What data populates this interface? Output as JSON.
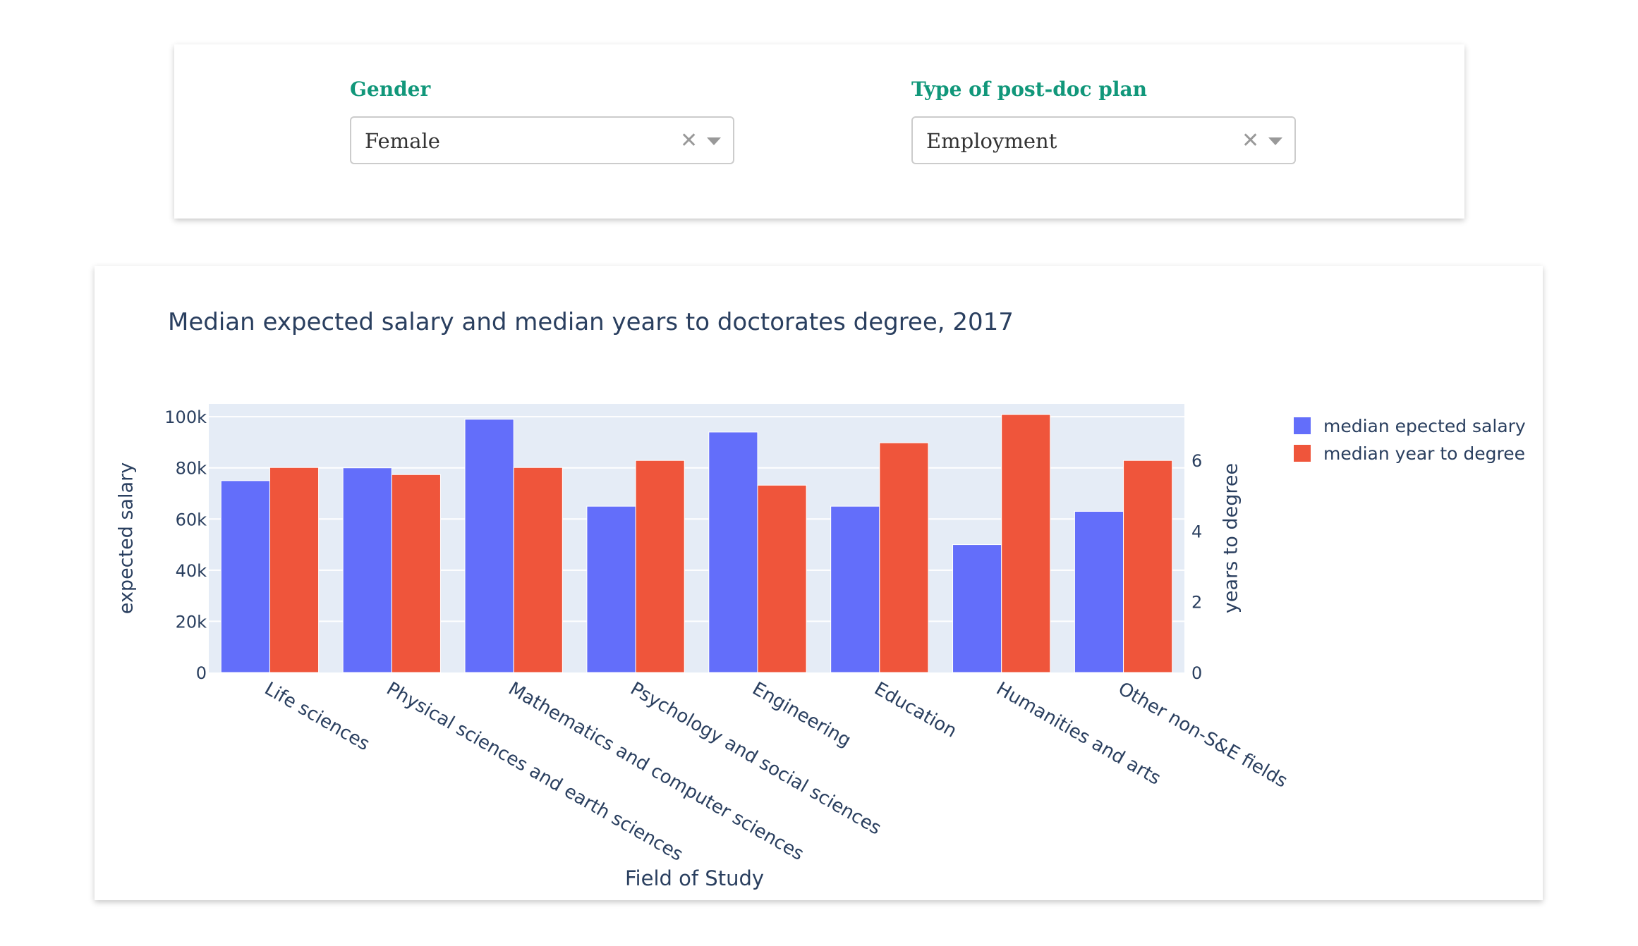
{
  "filters": {
    "gender": {
      "label": "Gender",
      "value": "Female",
      "clear_icon": "close-icon",
      "arrow_icon": "chevron-down-icon"
    },
    "plan": {
      "label": "Type of post-doc plan",
      "value": "Employment",
      "clear_icon": "close-icon",
      "arrow_icon": "chevron-down-icon"
    }
  },
  "colors": {
    "accent": "#11977a",
    "salary": "#636efa",
    "years": "#ef553b",
    "plot_bg": "#e5ecf6",
    "text": "#2a3f5f"
  },
  "chart_data": {
    "type": "bar",
    "title": "Median expected salary and median years to doctorates degree, 2017",
    "xlabel": "Field of Study",
    "ylabel": "expected salary",
    "y2label": "years to degree",
    "categories": [
      "Life sciences",
      "Physical sciences and earth sciences",
      "Mathematics and computer sciences",
      "Psychology and social sciences",
      "Engineering",
      "Education",
      "Humanities and arts",
      "Other non-S&E fields"
    ],
    "series": [
      {
        "name": "median epected salary",
        "axis": "y",
        "values": [
          75000,
          80000,
          99000,
          65000,
          94000,
          65000,
          50000,
          63000
        ]
      },
      {
        "name": "median year to degree",
        "axis": "y2",
        "values": [
          5.8,
          5.6,
          5.8,
          6.0,
          5.3,
          6.5,
          7.3,
          6.0
        ]
      }
    ],
    "ylim": [
      0,
      105000
    ],
    "yticks": [
      0,
      20000,
      40000,
      60000,
      80000,
      100000
    ],
    "ytick_labels": [
      "0",
      "20k",
      "40k",
      "60k",
      "80k",
      "100k"
    ],
    "y2lim": [
      0,
      7.6
    ],
    "y2ticks": [
      0,
      2,
      4,
      6
    ],
    "y2tick_labels": [
      "0",
      "2",
      "4",
      "6"
    ],
    "grid": true,
    "legend_position": "top-right"
  }
}
